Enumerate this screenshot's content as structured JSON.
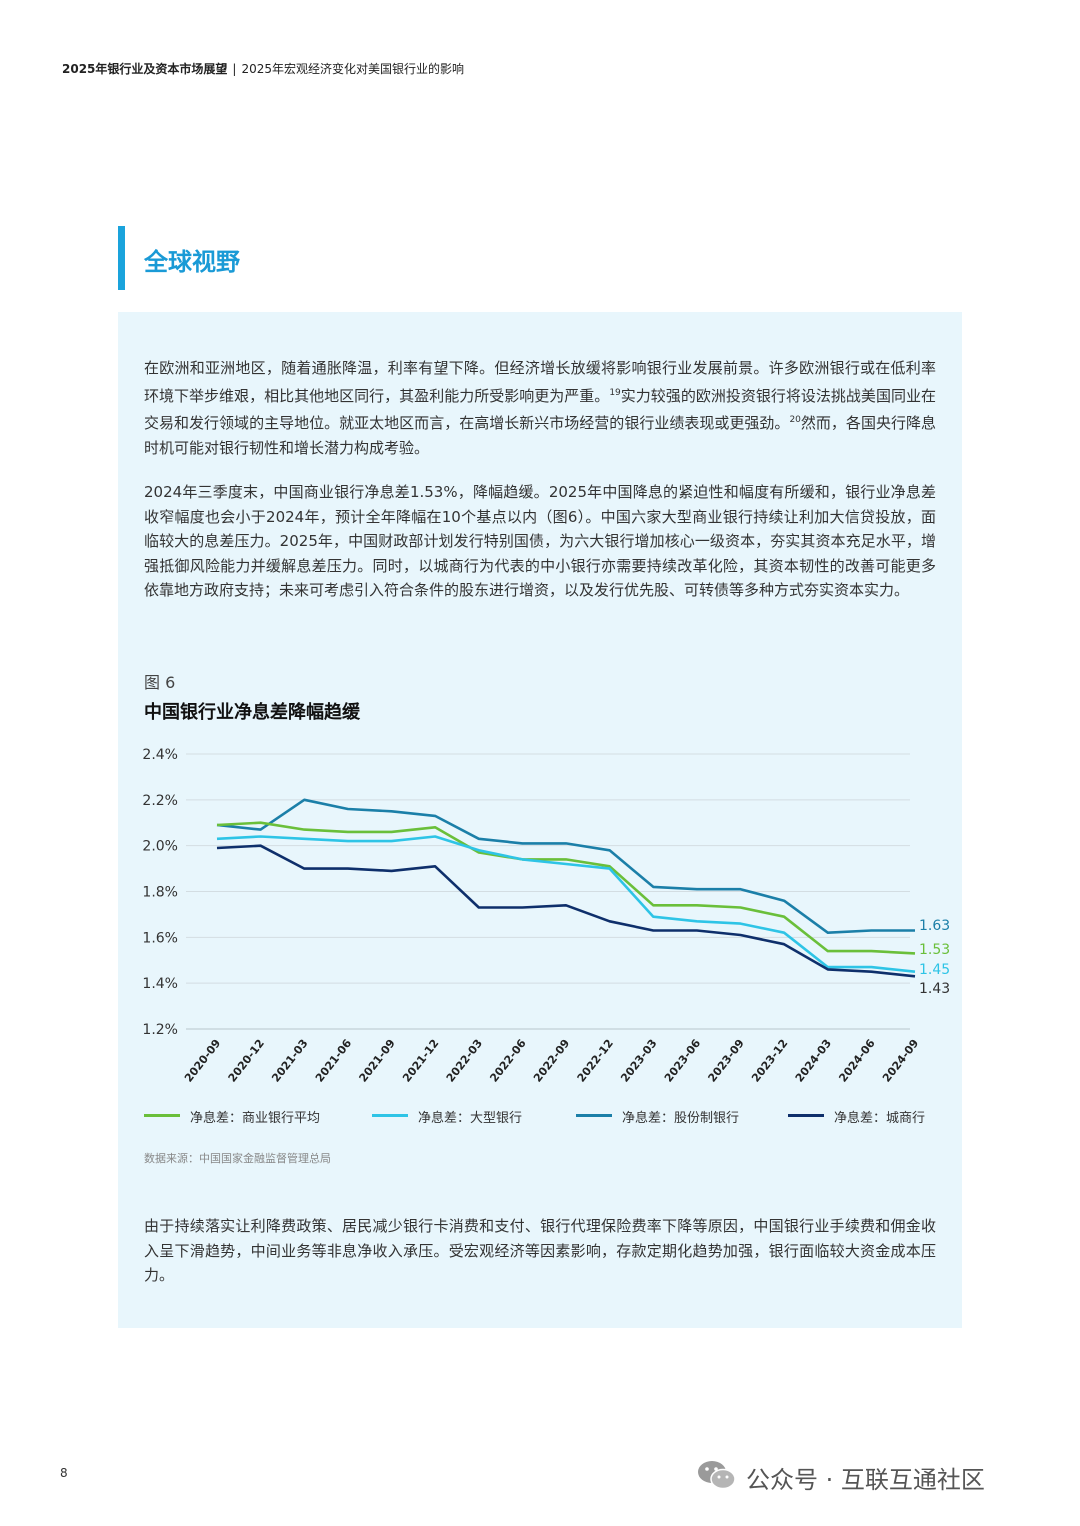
{
  "header": {
    "main": "2025年银行业及资本市场展望",
    "separator": "|",
    "sub": "2025年宏观经济变化对美国银行业的影响"
  },
  "section": {
    "title": "全球视野"
  },
  "paragraphs": {
    "p1a": "在欧洲和亚洲地区，随着通胀降温，利率有望下降。但经济增长放缓将影响银行业发展前景。许多欧洲银行或在低利率环境下举步维艰，相比其他地区同行，其盈利能力所受影响更为严重。",
    "p1_ref1": "19",
    "p1b": "实力较强的欧洲投资银行将设法挑战美国同业在交易和发行领域的主导地位。就亚太地区而言，在高增长新兴市场经营的银行业绩表现或更强劲。",
    "p1_ref2": "20",
    "p1c": "然而，各国央行降息时机可能对银行韧性和增长潜力构成考验。",
    "p2": "2024年三季度末，中国商业银行净息差1.53%，降幅趋缓。2025年中国降息的紧迫性和幅度有所缓和，银行业净息差收窄幅度也会小于2024年，预计全年降幅在10个基点以内（图6）。中国六家大型商业银行持续让利加大信贷投放，面临较大的息差压力。2025年，中国财政部计划发行特别国债，为六大银行增加核心一级资本，夯实其资本充足水平，增强抵御风险能力并缓解息差压力。同时，以城商行为代表的中小银行亦需要持续改革化险，其资本韧性的改善可能更多依靠地方政府支持；未来可考虑引入符合条件的股东进行增资，以及发行优先股、可转债等多种方式夯实资本实力。",
    "p3": "由于持续落实让利降费政策、居民减少银行卡消费和支付、银行代理保险费率下降等原因，中国银行业手续费和佣金收入呈下滑趋势，中间业务等非息净收入承压。受宏观经济等因素影响，存款定期化趋势加强，银行面临较大资金成本压力。"
  },
  "figure": {
    "label": "图 6",
    "title": "中国银行业净息差降幅趋缓",
    "source": "数据来源：中国国家金融监督管理总局"
  },
  "chart_data": {
    "type": "line",
    "title": "中国银行业净息差降幅趋缓",
    "xlabel": "",
    "ylabel": "",
    "x": [
      "2020-09",
      "2020-12",
      "2021-03",
      "2021-06",
      "2021-09",
      "2021-12",
      "2022-03",
      "2022-06",
      "2022-09",
      "2022-12",
      "2023-03",
      "2023-06",
      "2023-09",
      "2023-12",
      "2024-03",
      "2024-06",
      "2024-09"
    ],
    "y_ticks": [
      "2.4%",
      "2.2%",
      "2.0%",
      "1.8%",
      "1.6%",
      "1.4%",
      "1.2%"
    ],
    "ylim": [
      1.2,
      2.4
    ],
    "grid": true,
    "legend_position": "bottom",
    "series": [
      {
        "name": "净息差：商业银行平均",
        "color": "#6abf3a",
        "values": [
          2.09,
          2.1,
          2.07,
          2.06,
          2.06,
          2.08,
          1.97,
          1.94,
          1.94,
          1.91,
          1.74,
          1.74,
          1.73,
          1.69,
          1.54,
          1.54,
          1.53
        ],
        "end_label": "1.53"
      },
      {
        "name": "净息差：大型银行",
        "color": "#2ec4e6",
        "values": [
          2.03,
          2.04,
          2.03,
          2.02,
          2.02,
          2.04,
          1.98,
          1.94,
          1.92,
          1.9,
          1.69,
          1.67,
          1.66,
          1.62,
          1.47,
          1.47,
          1.45
        ],
        "end_label": "1.45"
      },
      {
        "name": "净息差：股份制银行",
        "color": "#1b7fa8",
        "values": [
          2.09,
          2.07,
          2.2,
          2.16,
          2.15,
          2.13,
          2.03,
          2.01,
          2.01,
          1.98,
          1.82,
          1.81,
          1.81,
          1.76,
          1.62,
          1.63,
          1.63
        ],
        "end_label": "1.63"
      },
      {
        "name": "净息差：城商行",
        "color": "#0e2f6b",
        "values": [
          1.99,
          2.0,
          1.9,
          1.9,
          1.89,
          1.91,
          1.73,
          1.73,
          1.74,
          1.67,
          1.63,
          1.63,
          1.61,
          1.57,
          1.46,
          1.45,
          1.43
        ],
        "end_label": "1.43"
      }
    ]
  },
  "page": {
    "number": "8"
  },
  "watermark": {
    "text": "公众号 · 互联互通社区"
  }
}
